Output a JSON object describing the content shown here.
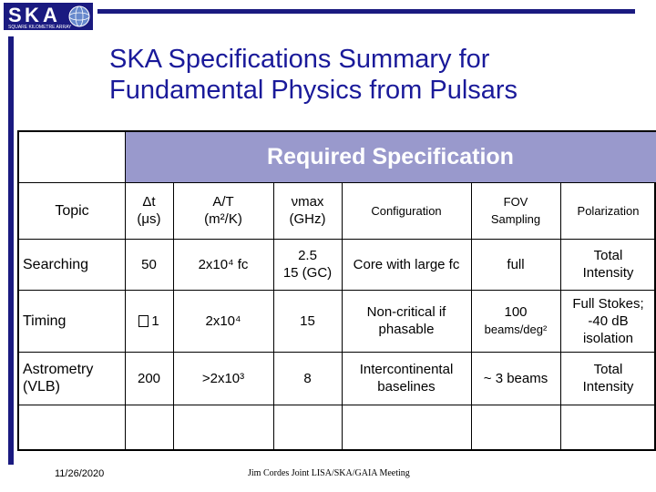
{
  "logo": {
    "text": "SKA",
    "subtitle": "SQUARE KILOMETRE ARRAY"
  },
  "title": {
    "line1": "SKA Specifications Summary for",
    "line2": "Fundamental Physics from Pulsars"
  },
  "table": {
    "header_band": "Required Specification",
    "col_headers": {
      "topic": "Topic",
      "dt_a": "Δt",
      "dt_b": "(μs)",
      "at_a": "A/T",
      "at_b": "(m²/K)",
      "nu_a": "νmax",
      "nu_b": "(GHz)",
      "config": "Configuration",
      "fov_a": "FOV",
      "fov_b": "Sampling",
      "pol": "Polarization"
    },
    "rows": [
      {
        "topic": "Searching",
        "dt": "50",
        "at": "2x10⁴ fc",
        "nu_a": "2.5",
        "nu_b": "15 (GC)",
        "config": "Core with large fc",
        "fov": "full",
        "fov_b": "",
        "pol_a": "Total",
        "pol_b": "Intensity",
        "pol_c": ""
      },
      {
        "topic": "Timing",
        "dt": "1",
        "at": "2x10⁴",
        "nu_a": "15",
        "nu_b": "",
        "config": "Non-critical if phasable",
        "fov": "100",
        "fov_b": "beams/deg²",
        "pol_a": "Full Stokes;",
        "pol_b": "-40 dB",
        "pol_c": "isolation"
      },
      {
        "topic": "Astrometry (VLB)",
        "dt": "200",
        "at": ">2x10³",
        "nu_a": "8",
        "nu_b": "",
        "config": "Intercontinental baselines",
        "fov": "~ 3 beams",
        "fov_b": "",
        "pol_a": "Total",
        "pol_b": "Intensity",
        "pol_c": ""
      }
    ]
  },
  "footer": {
    "date": "11/26/2020",
    "text": "Jim Cordes Joint LISA/SKA/GAIA Meeting"
  }
}
